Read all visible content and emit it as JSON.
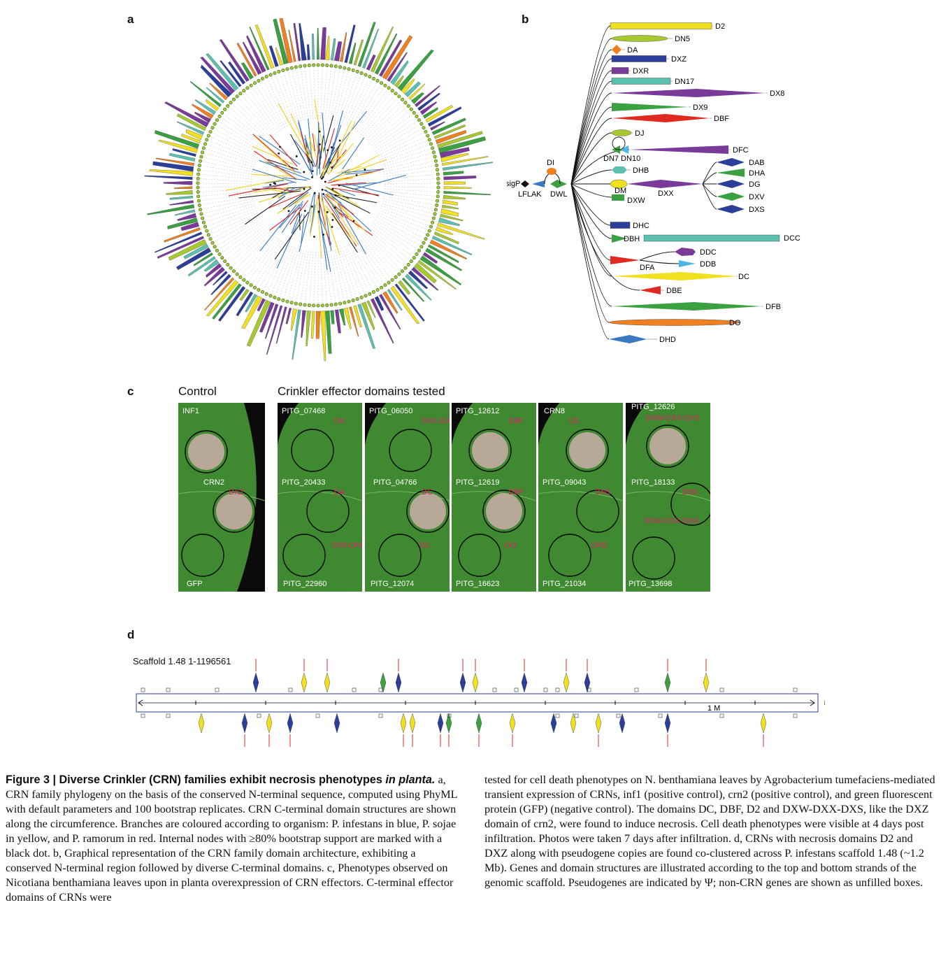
{
  "panels": {
    "a": "a",
    "b": "b",
    "c": "c",
    "d": "d"
  },
  "colors": {
    "infestans": "#3a78c2",
    "sojae": "#f0d020",
    "ramorum": "#e02020",
    "purple": "#7a3a9a",
    "green": "#3aa040",
    "teal": "#5cc0b0",
    "navy": "#2a3e9a",
    "lime": "#a8c830",
    "orange": "#f08020",
    "red": "#e02a20",
    "sky": "#4ab8e0",
    "yellow": "#f0e020"
  },
  "panel_b": {
    "n_terminal": [
      "sigP",
      "LFLAK",
      "DWL",
      "DI"
    ],
    "domains": [
      {
        "label": "D2"
      },
      {
        "label": "DN5"
      },
      {
        "label": "DA"
      },
      {
        "label": "DXZ"
      },
      {
        "label": "DXR"
      },
      {
        "label": "DN17"
      },
      {
        "label": "DX8"
      },
      {
        "label": "DX9"
      },
      {
        "label": "DBF"
      },
      {
        "label": "DJ"
      },
      {
        "label": "DFC"
      },
      {
        "label": "DN7 DN10"
      },
      {
        "label": "DHB"
      },
      {
        "label": "DM"
      },
      {
        "label": "DXX"
      },
      {
        "label": "DXW"
      },
      {
        "label": "DAB"
      },
      {
        "label": "DHA"
      },
      {
        "label": "DG"
      },
      {
        "label": "DXV"
      },
      {
        "label": "DXS"
      },
      {
        "label": "DHC"
      },
      {
        "label": "DCC"
      },
      {
        "label": "DBH"
      },
      {
        "label": "DDC"
      },
      {
        "label": "DDB"
      },
      {
        "label": "DFA"
      },
      {
        "label": "DC"
      },
      {
        "label": "DBE"
      },
      {
        "label": "DFB"
      },
      {
        "label": "DO"
      },
      {
        "label": "DHD"
      }
    ]
  },
  "panel_c": {
    "control_heading": "Control",
    "tested_heading": "Crinkler effector domains tested",
    "leaves": [
      {
        "labels": [
          {
            "t": "INF1",
            "d": ""
          },
          {
            "t": "CRN2",
            "d": "DXZ"
          },
          {
            "t": "GFP",
            "d": ""
          }
        ]
      },
      {
        "labels": [
          {
            "t": "PITG_07468",
            "d": "DA"
          },
          {
            "t": "PITG_20433",
            "d": "DA"
          },
          {
            "t": "PITG_22960",
            "d": "DX8-DN5"
          }
        ]
      },
      {
        "labels": [
          {
            "t": "PITG_06050",
            "d": "DXX-DXS"
          },
          {
            "t": "PITG_04766",
            "d": "DC"
          },
          {
            "t": "PITG_12074",
            "d": "DC"
          }
        ]
      },
      {
        "labels": [
          {
            "t": "PITG_12612",
            "d": "DBF"
          },
          {
            "t": "PITG_12619",
            "d": "DBF"
          },
          {
            "t": "PITG_16623",
            "d": "DO"
          }
        ]
      },
      {
        "labels": [
          {
            "t": "CRN8",
            "d": "D2"
          },
          {
            "t": "PITG_09043",
            "d": "DN5"
          },
          {
            "t": "PITG_21034",
            "d": "DN5"
          }
        ]
      },
      {
        "labels": [
          {
            "t": "PITG_12626",
            "d": "DXW-DXX-DXS"
          },
          {
            "t": "PITG_18133",
            "d": "DN5"
          },
          {
            "t": "PITG_13698",
            "d": "DXW-DXX-DHA"
          }
        ]
      }
    ]
  },
  "panel_d": {
    "scaffold_label": "Scaffold 1.48 1-1196561",
    "scale_label": "1 M"
  },
  "caption": {
    "fig_title": "Figure 3 | Diverse Crinkler (CRN) families exhibit necrosis phenotypes ",
    "fig_title_italic": "in planta.",
    "left_text": "a, CRN family phylogeny on the basis of the conserved N-terminal sequence, computed using PhyML with default parameters and 100 bootstrap replicates. CRN C-terminal domain structures are shown along the circumference. Branches are coloured according to organism: P. infestans in blue, P. sojae in yellow, and P. ramorum in red. Internal nodes with ≥80% bootstrap support are marked with a black dot. b, Graphical representation of the CRN family domain architecture, exhibiting a conserved N-terminal region followed by diverse C-terminal domains. c, Phenotypes observed on Nicotiana benthamiana leaves upon in planta overexpression of CRN effectors. C-terminal effector domains of CRNs were",
    "right_text": "tested for cell death phenotypes on N. benthamiana leaves by Agrobacterium tumefaciens-mediated transient expression of CRNs, inf1 (positive control), crn2 (positive control), and green fluorescent protein (GFP) (negative control). The domains DC, DBF, D2 and DXW-DXX-DXS, like the DXZ domain of crn2, were found to induce necrosis. Cell death phenotypes were visible at 4 days post infiltration. Photos were taken 7 days after infiltration. d, CRNs with necrosis domains D2 and DXZ along with pseudogene copies are found co-clustered across P. infestans scaffold 1.48 (~1.2 Mb). Genes and domain structures are illustrated according to the top and bottom strands of the genomic scaffold. Pseudogenes are indicated by Ψ; non-CRN genes are shown as unfilled boxes."
  }
}
